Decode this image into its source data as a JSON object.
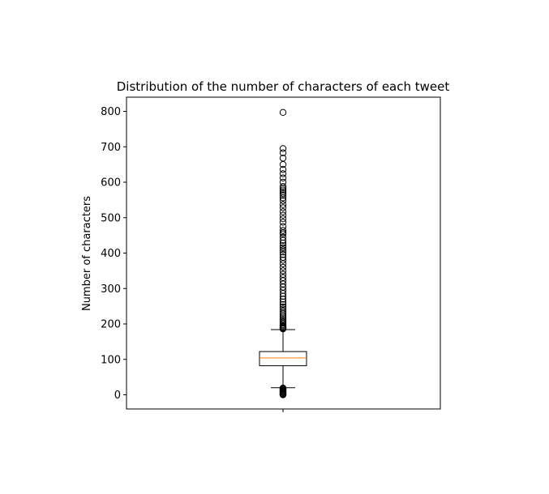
{
  "chart_data": {
    "type": "box",
    "title": "Distribution of the number of characters of each tweet",
    "xlabel": "",
    "ylabel": "Number of characters",
    "ylim": [
      -40,
      840
    ],
    "yticks": [
      0,
      100,
      200,
      300,
      400,
      500,
      600,
      700,
      800
    ],
    "ytick_labels": [
      "0",
      "100",
      "200",
      "300",
      "400",
      "500",
      "600",
      "700",
      "800"
    ],
    "xticks": [
      1
    ],
    "xtick_labels": [
      ""
    ],
    "grid": false,
    "box": {
      "whisker_low": 20,
      "q1": 82,
      "median": 104,
      "q3": 122,
      "whisker_high": 184,
      "outliers_low": [
        0,
        1,
        2,
        3,
        5,
        7,
        9,
        11,
        13,
        15,
        17,
        19
      ],
      "outliers_high": [
        186,
        188,
        190,
        192,
        195,
        198,
        202,
        206,
        210,
        215,
        220,
        225,
        230,
        236,
        242,
        248,
        255,
        262,
        270,
        278,
        286,
        295,
        304,
        313,
        322,
        331,
        340,
        350,
        360,
        370,
        380,
        388,
        396,
        403,
        409,
        415,
        421,
        428,
        436,
        445,
        454,
        458,
        464,
        475,
        487,
        497,
        507,
        517,
        528,
        537,
        548,
        556,
        563,
        568,
        573,
        578,
        583,
        588,
        600,
        612,
        624,
        636,
        650,
        668,
        683,
        695,
        797
      ]
    },
    "colors": {
      "box": "#000000",
      "median": "#ff7f0e",
      "outlier_edge": "#000000"
    }
  }
}
